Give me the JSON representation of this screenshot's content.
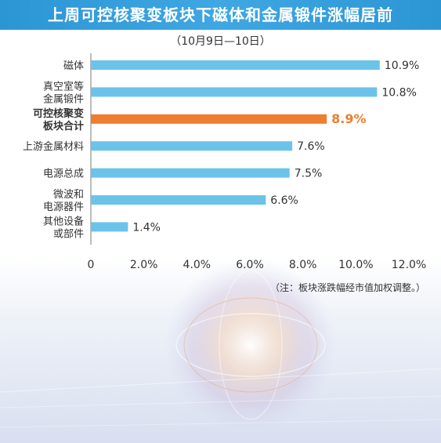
{
  "title": "上周可控核聚变板块下磁体和金属锻件涨幅居前",
  "subtitle": "（10月9日—10日）",
  "note": "（注：板块涨跌幅经市值加权调整。）",
  "colors": {
    "header": "#2f97d6",
    "bar": "#6cc3ea",
    "highlight_bar": "#ef7d2f",
    "highlight_text": "#ef7d2f",
    "text": "#333333"
  },
  "chart_data": {
    "type": "bar",
    "orientation": "horizontal",
    "categories": [
      [
        "磁体"
      ],
      [
        "真空室等",
        "金属锻件"
      ],
      [
        "可控核聚变",
        "板块合计"
      ],
      [
        "上游金属材料"
      ],
      [
        "电源总成"
      ],
      [
        "微波和",
        "电源器件"
      ],
      [
        "其他设备",
        "或部件"
      ]
    ],
    "values": [
      10.9,
      10.8,
      8.9,
      7.6,
      7.5,
      6.6,
      1.4
    ],
    "value_labels": [
      "10.9%",
      "10.8%",
      "8.9%",
      "7.6%",
      "7.5%",
      "6.6%",
      "1.4%"
    ],
    "highlight_index": 2,
    "xlim": [
      0,
      12
    ],
    "xticks": [
      0,
      2,
      4,
      6,
      8,
      10,
      12
    ],
    "xtick_labels": [
      "0",
      "2.0%",
      "4.0%",
      "6.0%",
      "8.0%",
      "10.0%",
      "12.0%"
    ],
    "grid": false
  }
}
